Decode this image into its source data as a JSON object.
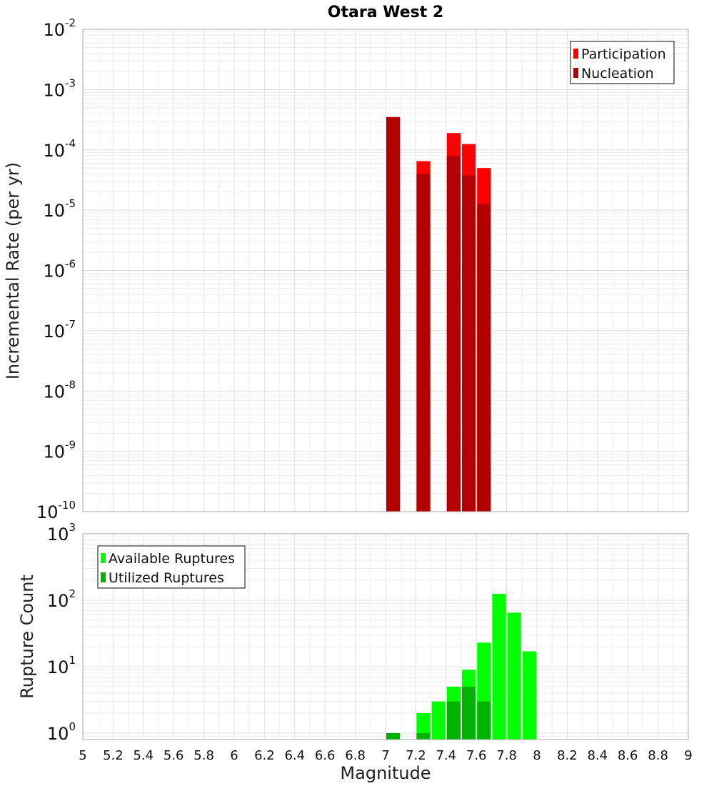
{
  "chart_data": [
    {
      "type": "bar",
      "title": "Otara West 2",
      "xlabel": "",
      "ylabel": "Incremental Rate (per yr)",
      "y_scale": "log",
      "ylim": [
        1e-10,
        0.01
      ],
      "xlim": [
        5,
        9
      ],
      "bar_width": 0.1,
      "grid": true,
      "legend_position": "top-right",
      "series": [
        {
          "name": "Participation",
          "color": "#ff0000",
          "x": [
            7.05,
            7.25,
            7.45,
            7.55,
            7.65
          ],
          "values": [
            0.00035,
            6.5e-05,
            0.00019,
            0.000125,
            5e-05
          ]
        },
        {
          "name": "Nucleation",
          "color": "#b30000",
          "x": [
            7.05,
            7.25,
            7.45,
            7.55,
            7.65
          ],
          "values": [
            0.00035,
            4e-05,
            8e-05,
            3.8e-05,
            1.25e-05
          ]
        }
      ]
    },
    {
      "type": "bar",
      "title": "",
      "xlabel": "Magnitude",
      "ylabel": "Rupture Count",
      "y_scale": "log",
      "ylim": [
        0.8,
        1000
      ],
      "xlim": [
        5,
        9
      ],
      "bar_width": 0.1,
      "grid": true,
      "legend_position": "top-left",
      "series": [
        {
          "name": "Available Ruptures",
          "color": "#00ff00",
          "x": [
            7.05,
            7.25,
            7.35,
            7.45,
            7.55,
            7.65,
            7.75,
            7.85,
            7.95
          ],
          "values": [
            1,
            2,
            3,
            5,
            9,
            23,
            125,
            65,
            17
          ]
        },
        {
          "name": "Utilized Ruptures",
          "color": "#00b300",
          "x": [
            7.05,
            7.25,
            7.45,
            7.55,
            7.65
          ],
          "values": [
            1,
            1,
            3,
            5,
            3
          ]
        }
      ]
    }
  ]
}
